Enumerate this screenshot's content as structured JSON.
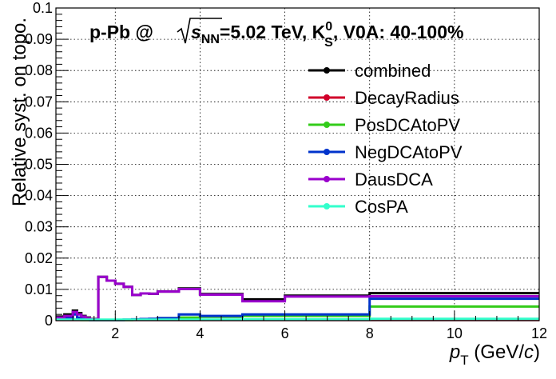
{
  "chart_data": {
    "type": "line",
    "title": {
      "prefix": "p-Pb @",
      "sqrt_var": "s",
      "sqrt_sub": "NN",
      "energy": "=5.02 TeV, K",
      "particle_sup": "0",
      "particle_sub": "S",
      "suffix": ", V0A: 40-100%"
    },
    "xlabel": {
      "main": "p",
      "sub": "T",
      "unit_pre": " (GeV/",
      "unit_var": "c",
      "unit_post": ")"
    },
    "ylabel": "Relative syst. on topo.",
    "xlim": [
      0.6,
      12
    ],
    "ylim": [
      0,
      0.1
    ],
    "xticks": [
      2,
      4,
      6,
      8,
      10,
      12
    ],
    "yticks": [
      0,
      0.01,
      0.02,
      0.03,
      0.04,
      0.05,
      0.06,
      0.07,
      0.08,
      0.09,
      0.1
    ],
    "ytick_labels": [
      "0",
      "0.01",
      "0.02",
      "0.03",
      "0.04",
      "0.05",
      "0.06",
      "0.07",
      "0.08",
      "0.09",
      "0.1"
    ],
    "xtick_labels": [
      "2",
      "4",
      "6",
      "8",
      "10",
      "12"
    ],
    "grid": true,
    "legend_position": "top-right",
    "bin_edges": [
      0.6,
      0.8,
      1.0,
      1.1,
      1.2,
      1.3,
      1.4,
      1.5,
      1.6,
      1.8,
      2.0,
      2.2,
      2.4,
      2.6,
      2.8,
      3.0,
      3.5,
      4.0,
      5.0,
      6.0,
      8.0,
      12.0
    ],
    "series": [
      {
        "name": "combined",
        "color": "#000000",
        "values": [
          0.0013,
          0.002,
          0.0032,
          0.0024,
          0.0015,
          0.001,
          0.0005,
          0.0005,
          0.014,
          0.0128,
          0.0118,
          0.0108,
          0.0082,
          0.0087,
          0.0086,
          0.0093,
          0.0103,
          0.0085,
          0.0068,
          0.008,
          0.0088
        ]
      },
      {
        "name": "DecayRadius",
        "color": "#d1002a",
        "values": [
          0.0002,
          0.0002,
          0.0002,
          0.0002,
          0.0002,
          0.0002,
          0.0002,
          0.0002,
          0.0002,
          0.0002,
          0.0002,
          0.0002,
          0.0002,
          0.0002,
          0.0002,
          0.0002,
          0.0002,
          0.0002,
          0.0002,
          0.0002,
          0.0002
        ]
      },
      {
        "name": "PosDCAtoPV",
        "color": "#33cc1a",
        "values": [
          0.0003,
          0.0003,
          0.0003,
          0.0003,
          0.0002,
          0.0002,
          0.0002,
          0.0002,
          0.0002,
          0.0002,
          0.0002,
          0.0002,
          0.0003,
          0.0004,
          0.0005,
          0.0008,
          0.001,
          0.0012,
          0.0015,
          0.0015,
          0.0045
        ]
      },
      {
        "name": "NegDCAtoPV",
        "color": "#0033cc",
        "values": [
          0.0008,
          0.001,
          0.002,
          0.001,
          0.0005,
          0.0003,
          0.0002,
          0.0002,
          0.0002,
          0.0002,
          0.0002,
          0.0003,
          0.0004,
          0.0005,
          0.0006,
          0.0008,
          0.002,
          0.0015,
          0.002,
          0.002,
          0.007
        ]
      },
      {
        "name": "DausDCA",
        "color": "#9900cc",
        "values": [
          0.001,
          0.0015,
          0.0028,
          0.002,
          0.0013,
          0.0008,
          0.0004,
          0.0004,
          0.014,
          0.0128,
          0.0118,
          0.0108,
          0.0082,
          0.0087,
          0.0086,
          0.0093,
          0.0101,
          0.0083,
          0.0062,
          0.0077,
          0.0078
        ]
      },
      {
        "name": "CosPA",
        "color": "#33ffcc",
        "values": [
          0.0003,
          0.0003,
          0.0003,
          0.0003,
          0.0003,
          0.0003,
          0.0003,
          0.0003,
          0.0003,
          0.0003,
          0.0003,
          0.0003,
          0.0003,
          0.0003,
          0.0003,
          0.0003,
          0.0003,
          0.0003,
          0.0004,
          0.0004,
          0.0006
        ]
      }
    ]
  }
}
